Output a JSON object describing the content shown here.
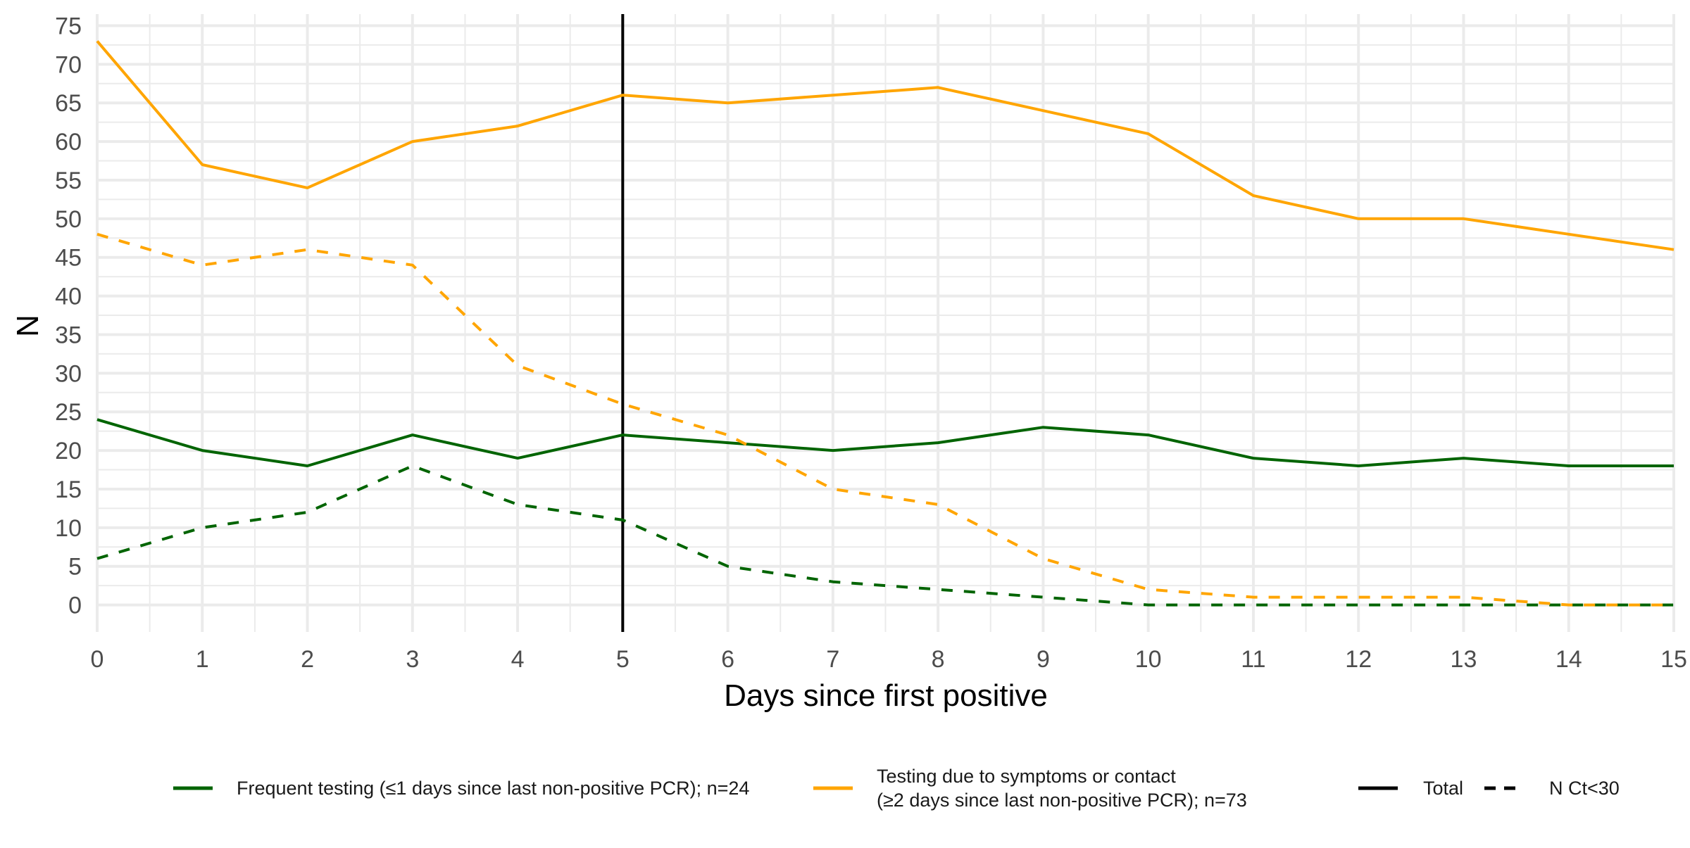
{
  "chart_data": {
    "type": "line",
    "xlabel": "Days since first positive",
    "ylabel": "N",
    "xlim": [
      0,
      15
    ],
    "ylim": [
      -3.5,
      76.5
    ],
    "x_ticks": [
      0,
      1,
      2,
      3,
      4,
      5,
      6,
      7,
      8,
      9,
      10,
      11,
      12,
      13,
      14,
      15
    ],
    "y_ticks": [
      0,
      5,
      10,
      15,
      20,
      25,
      30,
      35,
      40,
      45,
      50,
      55,
      60,
      65,
      70,
      75
    ],
    "grid": true,
    "legend_position": "bottom",
    "reference_line": {
      "x": 5,
      "color": "#000000"
    },
    "x": [
      0,
      1,
      2,
      3,
      4,
      5,
      6,
      7,
      8,
      9,
      10,
      11,
      12,
      13,
      14,
      15
    ],
    "series": [
      {
        "name": "Frequent testing (≤1 days since last non-positive PCR); n=24",
        "measure": "Total",
        "color": "#006400",
        "dash": "solid",
        "values": [
          24,
          20,
          18,
          22,
          19,
          22,
          21,
          20,
          21,
          23,
          22,
          19,
          18,
          19,
          18,
          18
        ]
      },
      {
        "name": "Frequent testing (≤1 days since last non-positive PCR); n=24",
        "measure": "N Ct<30",
        "color": "#006400",
        "dash": "dashed",
        "values": [
          6,
          10,
          12,
          18,
          13,
          11,
          5,
          3,
          2,
          1,
          0,
          0,
          0,
          0,
          0,
          0
        ]
      },
      {
        "name": "Testing due to symptoms or contact (≥2 days since last non-positive PCR); n=73",
        "measure": "Total",
        "color": "#FFA500",
        "dash": "solid",
        "values": [
          73,
          57,
          54,
          60,
          62,
          66,
          65,
          66,
          67,
          64,
          61,
          53,
          50,
          50,
          48,
          46
        ]
      },
      {
        "name": "Testing due to symptoms or contact (≥2 days since last non-positive PCR); n=73",
        "measure": "N Ct<30",
        "color": "#FFA500",
        "dash": "dashed",
        "values": [
          48,
          44,
          46,
          44,
          31,
          26,
          22,
          15,
          13,
          6,
          2,
          1,
          1,
          1,
          0,
          0
        ]
      }
    ],
    "legend": {
      "groups": [
        {
          "label_lines": [
            "Frequent testing (≤1 days since last non-positive PCR); n=24"
          ],
          "color": "#006400",
          "dash": "solid"
        },
        {
          "label_lines": [
            "Testing due to symptoms or contact",
            "(≥2 days since last non-positive PCR); n=73"
          ],
          "color": "#FFA500",
          "dash": "solid"
        }
      ],
      "linetypes": [
        {
          "label": "Total",
          "color": "#000000",
          "dash": "solid"
        },
        {
          "label": "N Ct<30",
          "color": "#000000",
          "dash": "dashed"
        }
      ]
    }
  }
}
